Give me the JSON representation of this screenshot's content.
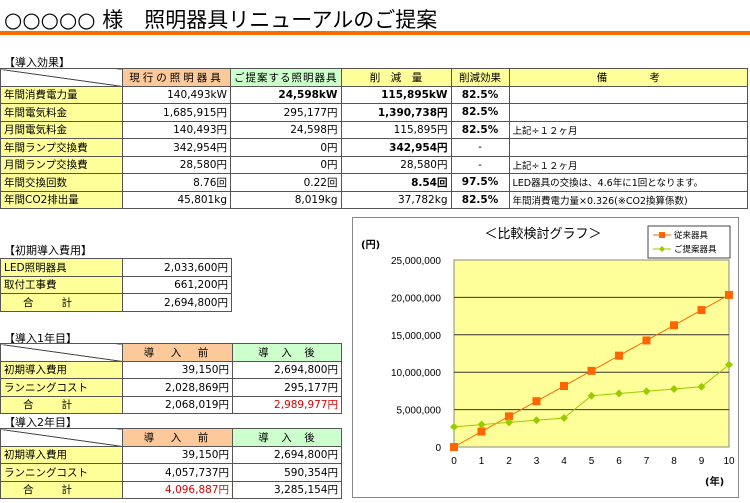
{
  "header": {
    "title": "○○○○○ 様　照明器具リニューアルのご提案"
  },
  "effect": {
    "section": "【導入効果】",
    "columns": [
      "現行の照明器具",
      "ご提案する照明器具",
      "削　減　量",
      "削減効果",
      "備　　　　考"
    ],
    "rows": [
      {
        "label": "年間消費電力量",
        "current": "140,493kW",
        "proposal": "24,598kW",
        "reduction": "115,895kW",
        "effect": "82.5%",
        "note": ""
      },
      {
        "label": "年間電気料金",
        "current": "1,685,915円",
        "proposal": "295,177円",
        "reduction": "1,390,738円",
        "effect": "82.5%",
        "note": ""
      },
      {
        "label": "月間電気料金",
        "current": "140,493円",
        "proposal": "24,598円",
        "reduction": "115,895円",
        "effect": "82.5%",
        "note": "上記÷１２ヶ月"
      },
      {
        "label": "年間ランプ交換費",
        "current": "342,954円",
        "proposal": "0円",
        "reduction": "342,954円",
        "effect": "-",
        "note": ""
      },
      {
        "label": "月間ランプ交換費",
        "current": "28,580円",
        "proposal": "0円",
        "reduction": "28,580円",
        "effect": "-",
        "note": "上記÷１２ヶ月"
      },
      {
        "label": "年間交換回数",
        "current": "8.76回",
        "proposal": "0.22回",
        "reduction": "8.54回",
        "effect": "97.5%",
        "note": "LED器具の交換は、4.6年に1回となります。"
      },
      {
        "label": "年間CO2排出量",
        "current": "45,801kg",
        "proposal": "8,019kg",
        "reduction": "37,782kg",
        "effect": "82.5%",
        "note": "年間消費電力量×0.326(※CO2換算係数)"
      }
    ]
  },
  "initial": {
    "section": "【初期導入費用】",
    "rows": [
      {
        "label": "LED照明器具",
        "value": "2,033,600円"
      },
      {
        "label": "取付工事費",
        "value": "661,200円"
      },
      {
        "label": "合計",
        "value": "2,694,800円"
      }
    ]
  },
  "year1": {
    "section": "【導入1年目】",
    "before": "導　入　前",
    "after": "導　入　後",
    "rows": [
      {
        "label": "初期導入費用",
        "before": "39,150円",
        "after": "2,694,800円"
      },
      {
        "label": "ランニングコスト",
        "before": "2,028,869円",
        "after": "295,177円"
      },
      {
        "label": "合計",
        "before": "2,068,019円",
        "after": "2,989,977円"
      }
    ]
  },
  "year2": {
    "section": "【導入2年目】",
    "before": "導　入　前",
    "after": "導　入　後",
    "rows": [
      {
        "label": "初期導入費用",
        "before": "39,150円",
        "after": "2,694,800円"
      },
      {
        "label": "ランニングコスト",
        "before": "4,057,737円",
        "after": "590,354円"
      },
      {
        "label": "合計",
        "before": "4,096,887円",
        "after": "3,285,154円"
      }
    ]
  },
  "chart_data": {
    "type": "line",
    "title": "＜比較検討グラフ＞",
    "ylabel": "(円)",
    "xlabel": "(年)",
    "x": [
      0,
      1,
      2,
      3,
      4,
      5,
      6,
      7,
      8,
      9,
      10
    ],
    "ylim": [
      0,
      25000000
    ],
    "yticks": [
      "0",
      "5,000,000",
      "10,000,000",
      "15,000,000",
      "20,000,000",
      "25,000,000"
    ],
    "legend_position": "top-right",
    "grid": true,
    "series": [
      {
        "name": "従来器具",
        "color": "#ff6600",
        "values": [
          0,
          2068019,
          4096887,
          6125000,
          8155000,
          10185000,
          12215000,
          14245000,
          16275000,
          18305000,
          20335000
        ]
      },
      {
        "name": "ご提案器具",
        "color": "#99cc00",
        "values": [
          2694800,
          2989977,
          3285154,
          3580000,
          3875000,
          6850000,
          7150000,
          7450000,
          7750000,
          8050000,
          11000000
        ]
      }
    ]
  }
}
